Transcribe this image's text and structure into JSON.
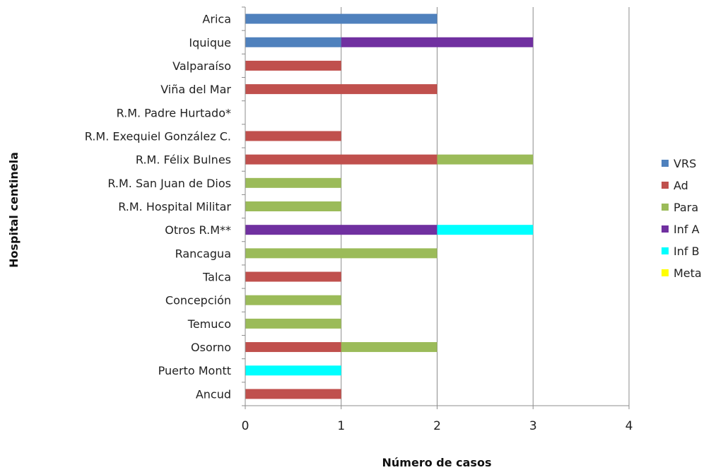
{
  "chart_data": {
    "type": "bar",
    "orientation": "horizontal",
    "stacked": true,
    "title": "",
    "xlabel": "Número de casos",
    "ylabel": "Hospital centinela",
    "xlim": [
      0,
      4
    ],
    "x_ticks": [
      "0",
      "1",
      "2",
      "3",
      "4"
    ],
    "grid": true,
    "legend_position": "right",
    "categories": [
      "Arica",
      "Iquique",
      "Valparaíso",
      "Viña del Mar",
      "R.M. Padre Hurtado*",
      "R.M. Exequiel González C.",
      "R.M. Félix Bulnes",
      "R.M. San Juan de Dios",
      "R.M. Hospital Militar",
      "Otros R.M**",
      "Rancagua",
      "Talca",
      "Concepción",
      "Temuco",
      "Osorno",
      "Puerto Montt",
      "Ancud"
    ],
    "series": [
      {
        "name": "VRS",
        "color": "#4F81BD",
        "values": [
          2,
          1,
          0,
          0,
          0,
          0,
          0,
          0,
          0,
          0,
          0,
          0,
          0,
          0,
          0,
          0,
          0
        ]
      },
      {
        "name": "Ad",
        "color": "#C0504D",
        "values": [
          0,
          0,
          1,
          2,
          0,
          1,
          2,
          0,
          0,
          0,
          0,
          1,
          0,
          0,
          1,
          0,
          1
        ]
      },
      {
        "name": "Para",
        "color": "#9BBB59",
        "values": [
          0,
          0,
          0,
          0,
          0,
          0,
          1,
          1,
          1,
          0,
          2,
          0,
          1,
          1,
          1,
          0,
          0
        ]
      },
      {
        "name": "Inf A",
        "color": "#7030A0",
        "values": [
          0,
          2,
          0,
          0,
          0,
          0,
          0,
          0,
          0,
          2,
          0,
          0,
          0,
          0,
          0,
          0,
          0
        ]
      },
      {
        "name": "Inf B",
        "color": "#00FFFF",
        "values": [
          0,
          0,
          0,
          0,
          0,
          0,
          0,
          0,
          0,
          1,
          0,
          0,
          0,
          0,
          0,
          1,
          0
        ]
      },
      {
        "name": "Meta",
        "color": "#FFFF00",
        "values": [
          0,
          0,
          0,
          0,
          0,
          0,
          0,
          0,
          0,
          0,
          0,
          0,
          0,
          0,
          0,
          0,
          0
        ]
      }
    ]
  }
}
